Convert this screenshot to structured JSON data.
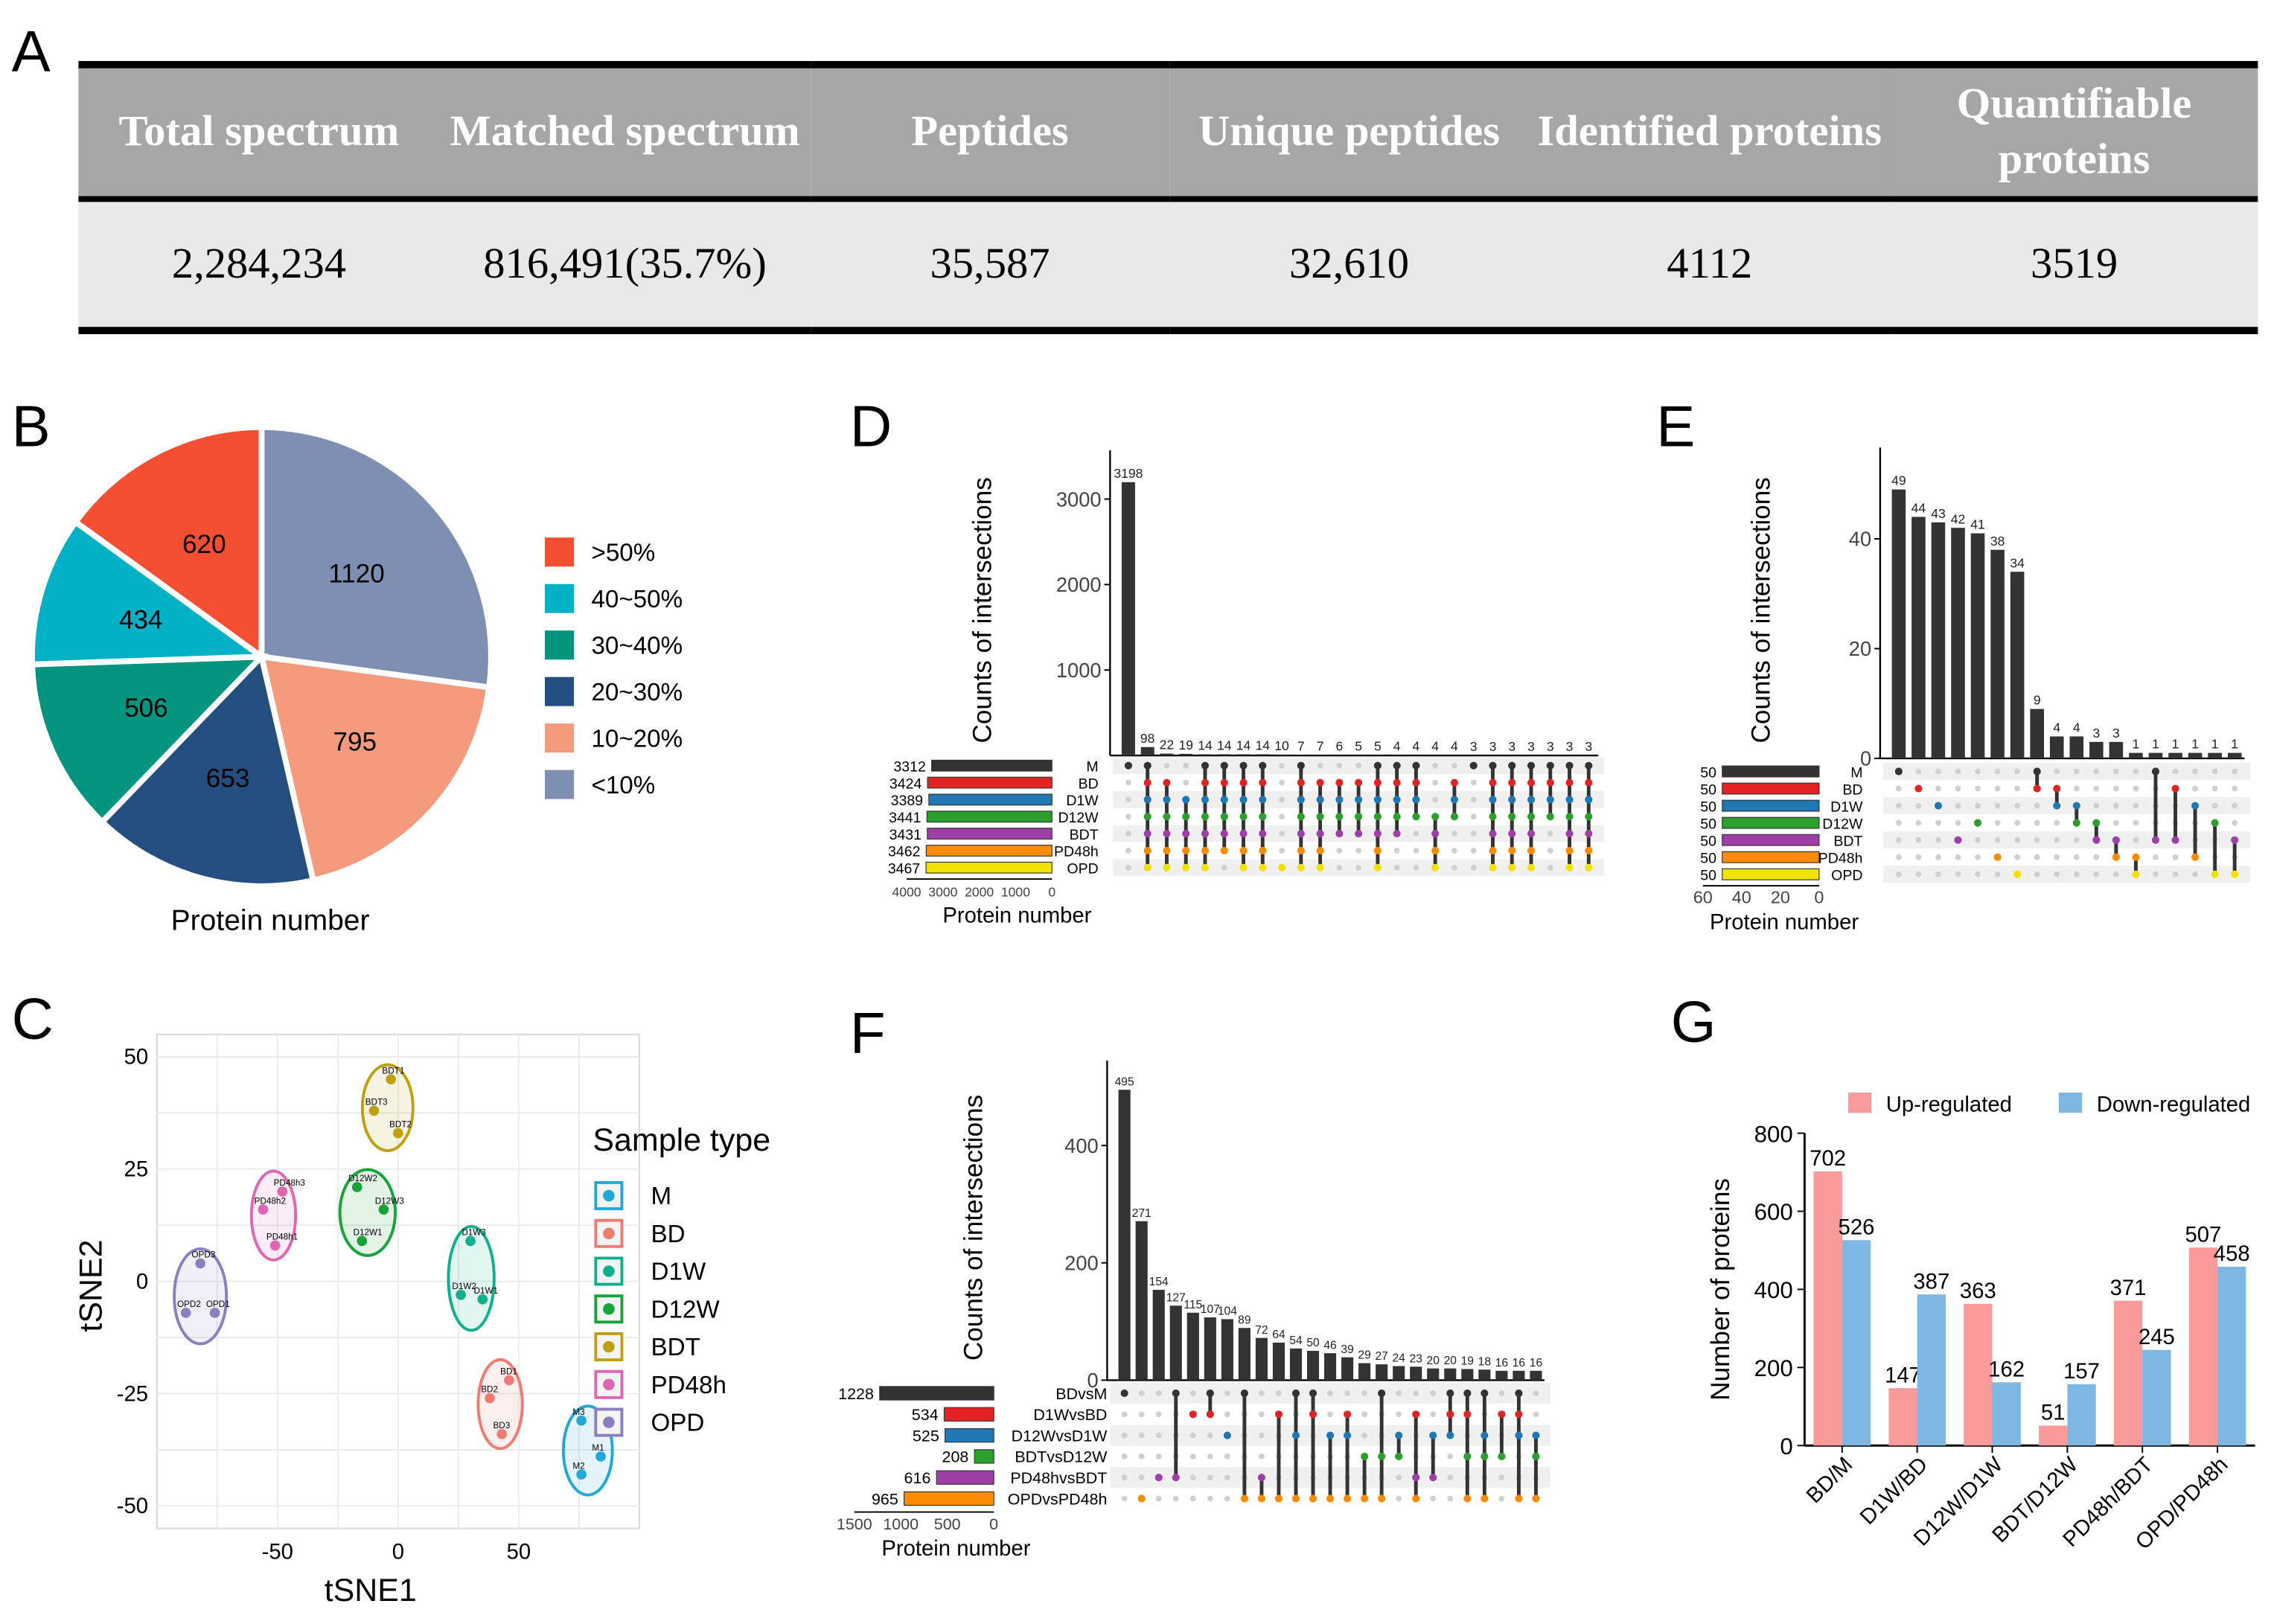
{
  "panels": {
    "A": "A",
    "B": "B",
    "C": "C",
    "D": "D",
    "E": "E",
    "F": "F",
    "G": "G"
  },
  "table": {
    "headers": [
      "Total spectrum",
      "Matched spectrum",
      "Peptides",
      "Unique peptides",
      "Identified proteins",
      "Quantifiable proteins"
    ],
    "values": [
      "2,284,234",
      "816,491(35.7%)",
      "35,587",
      "32,610",
      "4112",
      "3519"
    ]
  },
  "pie": {
    "title": "Protein number",
    "slices": [
      {
        "label": ">50%",
        "value": 620,
        "color": "#f44f33"
      },
      {
        "label": "40~50%",
        "value": 434,
        "color": "#00b1c6"
      },
      {
        "label": "30~40%",
        "value": 506,
        "color": "#019580"
      },
      {
        "label": "20~30%",
        "value": 653,
        "color": "#254e80"
      },
      {
        "label": "10~20%",
        "value": 795,
        "color": "#f69a7d"
      },
      {
        "label": "<10%",
        "value": 1120,
        "color": "#7f8fb1"
      }
    ]
  },
  "tsne": {
    "xlabel": "tSNE1",
    "ylabel": "tSNE2",
    "xticks": [
      "-50",
      "0",
      "50"
    ],
    "yticks": [
      "50",
      "25",
      "0",
      "-25",
      "-50"
    ],
    "legend_title": "Sample type",
    "groups": [
      {
        "name": "M",
        "color": "#20a8d8",
        "points": [
          {
            "label": "M3",
            "x": 76,
            "y": -31
          },
          {
            "label": "M1",
            "x": 84,
            "y": -39
          },
          {
            "label": "M2",
            "x": 76,
            "y": -43
          }
        ]
      },
      {
        "name": "BD",
        "color": "#f07b72",
        "points": [
          {
            "label": "BD1",
            "x": 46,
            "y": -22
          },
          {
            "label": "BD2",
            "x": 38,
            "y": -26
          },
          {
            "label": "BD3",
            "x": 43,
            "y": -34
          }
        ]
      },
      {
        "name": "D1W",
        "color": "#10b08e",
        "points": [
          {
            "label": "D1W3",
            "x": 30,
            "y": 9
          },
          {
            "label": "D1W2",
            "x": 26,
            "y": -3
          },
          {
            "label": "D1W1",
            "x": 35,
            "y": -4
          }
        ]
      },
      {
        "name": "D12W",
        "color": "#18a23a",
        "points": [
          {
            "label": "D12W2",
            "x": -17,
            "y": 21
          },
          {
            "label": "D12W3",
            "x": -6,
            "y": 16
          },
          {
            "label": "D12W1",
            "x": -15,
            "y": 9
          }
        ]
      },
      {
        "name": "BDT",
        "color": "#c0a010",
        "points": [
          {
            "label": "BDT1",
            "x": -3,
            "y": 45
          },
          {
            "label": "BDT3",
            "x": -10,
            "y": 38
          },
          {
            "label": "BDT2",
            "x": 0,
            "y": 33
          }
        ]
      },
      {
        "name": "PD48h",
        "color": "#e066b4",
        "points": [
          {
            "label": "PD48h3",
            "x": -48,
            "y": 20
          },
          {
            "label": "PD48h2",
            "x": -56,
            "y": 16
          },
          {
            "label": "PD48h1",
            "x": -51,
            "y": 8
          }
        ]
      },
      {
        "name": "OPD",
        "color": "#8c7fc0",
        "points": [
          {
            "label": "OPD3",
            "x": -82,
            "y": 4
          },
          {
            "label": "OPD2",
            "x": -88,
            "y": -7
          },
          {
            "label": "OPD1",
            "x": -76,
            "y": -7
          }
        ]
      }
    ]
  },
  "upsetD": {
    "ylabel": "Counts of intersections",
    "xlabel": "Protein number",
    "yticks": [
      "3000",
      "2000",
      "1000"
    ],
    "ymax": 3400,
    "bars": [
      3198,
      98,
      22,
      19,
      14,
      14,
      14,
      14,
      10,
      7,
      7,
      6,
      5,
      5,
      4,
      4,
      4,
      4,
      3,
      3,
      3,
      3,
      3,
      3,
      3
    ],
    "bar_labels": [
      "3198",
      "98",
      "22",
      "19",
      "14",
      "14",
      "14",
      "14",
      "10",
      "7",
      "7",
      "6",
      "5",
      "5",
      "4",
      "4",
      "4",
      "4",
      "3",
      "3",
      "3",
      "3",
      "3",
      "3",
      "3"
    ],
    "sets": [
      {
        "name": "M",
        "size": 3312,
        "size_label": "3312",
        "color": "#333333"
      },
      {
        "name": "BD",
        "size": 3424,
        "size_label": "3424",
        "color": "#e32222"
      },
      {
        "name": "D1W",
        "size": 3389,
        "size_label": "3389",
        "color": "#1f77b4"
      },
      {
        "name": "D12W",
        "size": 3441,
        "size_label": "3441",
        "color": "#2ca02c"
      },
      {
        "name": "BDT",
        "size": 3431,
        "size_label": "3431",
        "color": "#9e3fa8"
      },
      {
        "name": "PD48h",
        "size": 3462,
        "size_label": "3462",
        "color": "#ff8c00"
      },
      {
        "name": "OPD",
        "size": 3467,
        "size_label": "3467",
        "color": "#f2e200"
      }
    ],
    "set_axis": [
      "4000",
      "3000",
      "2000",
      "1000",
      "0"
    ],
    "set_max": 4000,
    "matrix": [
      [
        0
      ],
      [
        0,
        1,
        2,
        3,
        4,
        5,
        6
      ],
      [
        1,
        2,
        3,
        4,
        5,
        6
      ],
      [
        2,
        3,
        4,
        5,
        6
      ],
      [
        0,
        1,
        2,
        3,
        4,
        5,
        6
      ],
      [
        0,
        1,
        2,
        3,
        4,
        5
      ],
      [
        0,
        1,
        2,
        3,
        4,
        5,
        6
      ],
      [
        0,
        1,
        2,
        3,
        4,
        5,
        6
      ],
      [
        6
      ],
      [
        0,
        1,
        2,
        3,
        4,
        5,
        6
      ],
      [
        1,
        2,
        3,
        4,
        5,
        6
      ],
      [
        1,
        2,
        3,
        4
      ],
      [
        1,
        2,
        3,
        4
      ],
      [
        0,
        1,
        2,
        3,
        4,
        5,
        6
      ],
      [
        0,
        1,
        2,
        3,
        4
      ],
      [
        0,
        1,
        2,
        3
      ],
      [
        3,
        4,
        5,
        6
      ],
      [
        1,
        2,
        3
      ],
      [
        0
      ],
      [
        0,
        1,
        2,
        3,
        4,
        5,
        6
      ],
      [
        0,
        1,
        2,
        3,
        4,
        5,
        6
      ],
      [
        0,
        1,
        2,
        3,
        4,
        5,
        6
      ],
      [
        0,
        1,
        2,
        3
      ],
      [
        0,
        1,
        2,
        3,
        4,
        5,
        6
      ],
      [
        0,
        1,
        2,
        3,
        4,
        5,
        6
      ]
    ]
  },
  "upsetE": {
    "ylabel": "Counts of intersections",
    "xlabel": "Protein number",
    "yticks": [
      "40",
      "20",
      "0"
    ],
    "ymax": 54,
    "bars": [
      49,
      44,
      43,
      42,
      41,
      38,
      34,
      9,
      4,
      4,
      3,
      3,
      1,
      1,
      1,
      1,
      1,
      1
    ],
    "bar_labels": [
      "49",
      "44",
      "43",
      "42",
      "41",
      "38",
      "34",
      "9",
      "4",
      "4",
      "3",
      "3",
      "1",
      "1",
      "1",
      "1",
      "1",
      "1"
    ],
    "sets": [
      {
        "name": "M",
        "size": 50,
        "size_label": "50",
        "color": "#333333"
      },
      {
        "name": "BD",
        "size": 50,
        "size_label": "50",
        "color": "#e32222"
      },
      {
        "name": "D1W",
        "size": 50,
        "size_label": "50",
        "color": "#1f77b4"
      },
      {
        "name": "D12W",
        "size": 50,
        "size_label": "50",
        "color": "#2ca02c"
      },
      {
        "name": "BDT",
        "size": 50,
        "size_label": "50",
        "color": "#9e3fa8"
      },
      {
        "name": "PD48h",
        "size": 50,
        "size_label": "50",
        "color": "#ff8c00"
      },
      {
        "name": "OPD",
        "size": 50,
        "size_label": "50",
        "color": "#f2e200"
      }
    ],
    "set_axis": [
      "60",
      "40",
      "20",
      "0"
    ],
    "set_max": 60,
    "matrix": [
      [
        0
      ],
      [
        1
      ],
      [
        2
      ],
      [
        4
      ],
      [
        3
      ],
      [
        5
      ],
      [
        6
      ],
      [
        0,
        1
      ],
      [
        1,
        2
      ],
      [
        2,
        3
      ],
      [
        3,
        4
      ],
      [
        4,
        5
      ],
      [
        5,
        6
      ],
      [
        0,
        4
      ],
      [
        1,
        4
      ],
      [
        2,
        5
      ],
      [
        3,
        6
      ],
      [
        4,
        6
      ]
    ]
  },
  "upsetF": {
    "ylabel": "Counts of intersections",
    "xlabel": "Protein number",
    "yticks": [
      "400",
      "200",
      "0"
    ],
    "ymax": 520,
    "bars": [
      495,
      271,
      154,
      127,
      115,
      107,
      104,
      89,
      72,
      64,
      54,
      50,
      46,
      39,
      29,
      27,
      24,
      23,
      20,
      20,
      19,
      18,
      16,
      16,
      16
    ],
    "bar_labels": [
      "495",
      "271",
      "154",
      "127",
      "115",
      "107",
      "104",
      "89",
      "72",
      "64",
      "54",
      "50",
      "46",
      "39",
      "29",
      "27",
      "24",
      "23",
      "20",
      "20",
      "19",
      "18",
      "16",
      "16",
      "16"
    ],
    "sets": [
      {
        "name": "BDvsM",
        "size": 1228,
        "size_label": "1228",
        "color": "#333333"
      },
      {
        "name": "D1WvsBD",
        "size": 534,
        "size_label": "534",
        "color": "#e32222"
      },
      {
        "name": "D12WvsD1W",
        "size": 525,
        "size_label": "525",
        "color": "#1f77b4"
      },
      {
        "name": "BDTvsD12W",
        "size": 208,
        "size_label": "208",
        "color": "#2ca02c"
      },
      {
        "name": "PD48hvsBDT",
        "size": 616,
        "size_label": "616",
        "color": "#9e3fa8"
      },
      {
        "name": "OPDvsPD48h",
        "size": 965,
        "size_label": "965",
        "color": "#ff8c00"
      }
    ],
    "set_axis": [
      "1500",
      "1000",
      "500",
      "0"
    ],
    "set_max": 1500,
    "matrix": [
      [
        0
      ],
      [
        5
      ],
      [
        4
      ],
      [
        0,
        4
      ],
      [
        1
      ],
      [
        0,
        1
      ],
      [
        2
      ],
      [
        0,
        5
      ],
      [
        4,
        5
      ],
      [
        1,
        5
      ],
      [
        0,
        2,
        5
      ],
      [
        0,
        1,
        5
      ],
      [
        2,
        5
      ],
      [
        1,
        2,
        5
      ],
      [
        3,
        5
      ],
      [
        0,
        3,
        5
      ],
      [
        2,
        3
      ],
      [
        1,
        4,
        5
      ],
      [
        2,
        4
      ],
      [
        0,
        1,
        2
      ],
      [
        0,
        1,
        3,
        5
      ],
      [
        0,
        2,
        3,
        5
      ],
      [
        1,
        3
      ],
      [
        0,
        1,
        2,
        5
      ],
      [
        2,
        3,
        5
      ]
    ]
  },
  "chart_data": {
    "type": "bar",
    "title": "",
    "ylabel": "Number of proteins",
    "xlabel": "",
    "ylim": [
      0,
      800
    ],
    "yticks": [
      "800",
      "600",
      "400",
      "200",
      "0"
    ],
    "categories": [
      "BD/M",
      "D1W/BD",
      "D12W/D1W",
      "BDT/D12W",
      "PD48h/BDT",
      "OPD/PD48h"
    ],
    "series": [
      {
        "name": "Up-regulated",
        "color": "#fa9a9a",
        "values": [
          702,
          147,
          363,
          51,
          371,
          507
        ]
      },
      {
        "name": "Down-regulated",
        "color": "#7eb7e3",
        "values": [
          526,
          387,
          162,
          157,
          245,
          458
        ]
      }
    ],
    "value_labels_up": [
      "702",
      "147",
      "363",
      "51",
      "371",
      "507"
    ],
    "value_labels_down": [
      "526",
      "387",
      "162",
      "157",
      "245",
      "458"
    ],
    "legend_position": "top"
  }
}
